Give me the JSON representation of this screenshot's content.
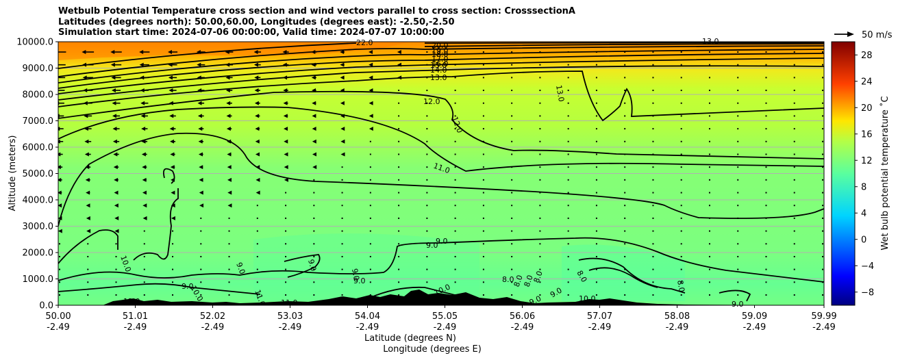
{
  "chart_data": {
    "type": "heatmap",
    "title_lines": [
      "Wetbulb Potential Temperature cross section and wind vectors parallel to cross section: CrosssectionA",
      "Latitudes (degrees north): 50.00,60.00, Longitudes (degrees east): -2.50,-2.50",
      "Simulation start time: 2024-07-06 00:00:00, Valid time: 2024-07-07 10:00:00"
    ],
    "ylabel": "Altitude (meters)",
    "xlabel": "Latitude (degrees N)",
    "xlabel2": "Longitude (degrees E)",
    "ylim": [
      0,
      10000
    ],
    "xlim": [
      50.0,
      59.99
    ],
    "y_ticks": [
      "0.0",
      "1000.0",
      "2000.0",
      "3000.0",
      "4000.0",
      "5000.0",
      "6000.0",
      "7000.0",
      "8000.0",
      "9000.0",
      "10000.0"
    ],
    "x_ticks_lat": [
      "50.00",
      "51.01",
      "52.02",
      "53.03",
      "54.04",
      "55.05",
      "56.06",
      "57.07",
      "58.08",
      "59.09",
      "59.99"
    ],
    "x_ticks_lon": [
      "-2.49",
      "-2.49",
      "-2.49",
      "-2.49",
      "-2.49",
      "-2.49",
      "-2.49",
      "-2.49",
      "-2.49",
      "-2.49",
      "-2.49"
    ],
    "grid": "horizontal",
    "colorbar": {
      "label": "Wet bulb potential temperature ˚C",
      "ticks": [
        "−8",
        "−4",
        "0",
        "4",
        "8",
        "12",
        "16",
        "20",
        "24",
        "28"
      ],
      "range": [
        -10,
        30
      ],
      "colormap": "jet"
    },
    "wind_key": {
      "label": "50 m/s"
    },
    "contour_labels": [
      "22.0",
      "20.0",
      "19.0",
      "18.0",
      "17.0",
      "16.0",
      "15.0",
      "14.0",
      "13.0",
      "13.0",
      "13.0",
      "12.0",
      "12.0",
      "12.0",
      "11.0",
      "11.0",
      "11.0",
      "10.0",
      "10.0",
      "10.0",
      "10.0",
      "9.0",
      "9.0",
      "9.0",
      "9.0",
      "9.0",
      "9.0",
      "9.0",
      "9.0",
      "9.0",
      "9.0",
      "8.0",
      "8.0",
      "8.0",
      "8.0",
      "8.0",
      "8.0"
    ]
  }
}
